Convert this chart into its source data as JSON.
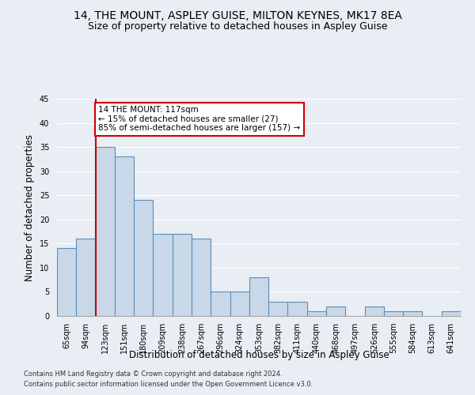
{
  "title1": "14, THE MOUNT, ASPLEY GUISE, MILTON KEYNES, MK17 8EA",
  "title2": "Size of property relative to detached houses in Aspley Guise",
  "xlabel": "Distribution of detached houses by size in Aspley Guise",
  "ylabel": "Number of detached properties",
  "footer1": "Contains HM Land Registry data © Crown copyright and database right 2024.",
  "footer2": "Contains public sector information licensed under the Open Government Licence v3.0.",
  "categories": [
    "65sqm",
    "94sqm",
    "123sqm",
    "151sqm",
    "180sqm",
    "209sqm",
    "238sqm",
    "267sqm",
    "296sqm",
    "324sqm",
    "353sqm",
    "382sqm",
    "411sqm",
    "440sqm",
    "468sqm",
    "497sqm",
    "526sqm",
    "555sqm",
    "584sqm",
    "613sqm",
    "641sqm"
  ],
  "values": [
    14,
    16,
    35,
    33,
    24,
    17,
    17,
    16,
    5,
    5,
    8,
    3,
    3,
    1,
    2,
    0,
    2,
    1,
    1,
    0,
    1
  ],
  "bar_color": "#c8d8e8",
  "bar_edge_color": "#5b8db8",
  "property_line_color": "#cc0000",
  "annotation_text": "14 THE MOUNT: 117sqm\n← 15% of detached houses are smaller (27)\n85% of semi-detached houses are larger (157) →",
  "annotation_box_color": "#ffffff",
  "annotation_box_edge": "#cc0000",
  "ylim": [
    0,
    45
  ],
  "yticks": [
    0,
    5,
    10,
    15,
    20,
    25,
    30,
    35,
    40,
    45
  ],
  "background_color": "#e8eef4",
  "plot_background": "#e8eef4",
  "grid_color": "#ffffff",
  "title1_fontsize": 10,
  "title2_fontsize": 9,
  "xlabel_fontsize": 8.5,
  "ylabel_fontsize": 8.5,
  "tick_fontsize": 7,
  "footer_fontsize": 6,
  "annotation_fontsize": 7.5
}
